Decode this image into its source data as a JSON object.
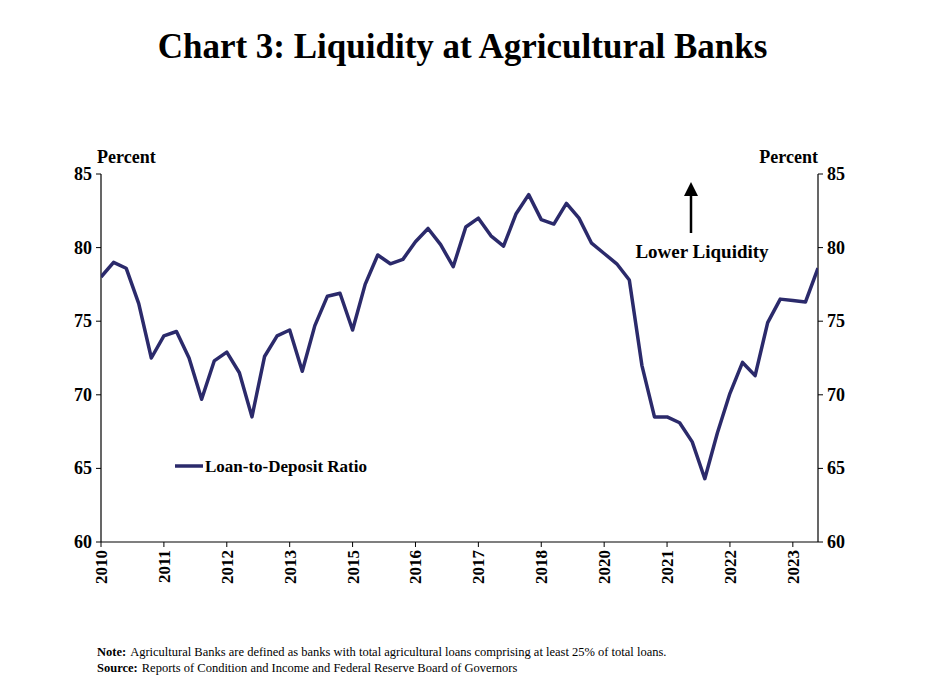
{
  "chart_data": {
    "type": "line",
    "title": "Chart 3: Liquidity at Agricultural Banks",
    "y_label": "Percent",
    "y2_label": "Percent",
    "annotation": "Lower Liquidity",
    "notes": [
      {
        "label": "Note:",
        "text": "Agricultural Banks are defined as banks with total agricultural loans comprising at least 25% of total loans."
      },
      {
        "label": "Source:",
        "text": "Reports of Condition and Income and Federal Reserve Board of Governors"
      }
    ],
    "categories": [
      "2010",
      null,
      null,
      null,
      null,
      "2011",
      null,
      null,
      null,
      null,
      "2012",
      null,
      null,
      null,
      null,
      "2013",
      null,
      null,
      null,
      null,
      "2015",
      null,
      null,
      null,
      null,
      "2016",
      null,
      null,
      null,
      null,
      "2017",
      null,
      null,
      null,
      null,
      "2018",
      null,
      null,
      null,
      null,
      "2020",
      null,
      null,
      null,
      null,
      "2021",
      null,
      null,
      null,
      null,
      "2022",
      null,
      null,
      null,
      null,
      "2023",
      null,
      null
    ],
    "series": [
      {
        "name": "Loan-to-Deposit Ratio",
        "color": "#2b2a6b",
        "values": [
          78.0,
          79.0,
          78.6,
          76.2,
          72.5,
          74.0,
          74.3,
          72.5,
          69.7,
          72.3,
          72.9,
          71.5,
          68.5,
          72.6,
          74.0,
          74.4,
          71.6,
          74.7,
          76.7,
          76.9,
          74.4,
          77.5,
          79.5,
          78.9,
          79.2,
          80.4,
          81.3,
          80.2,
          78.7,
          81.4,
          82.0,
          80.8,
          80.1,
          82.3,
          83.6,
          81.9,
          81.6,
          83.0,
          82.0,
          80.3,
          79.6,
          78.9,
          77.8,
          72.0,
          68.5,
          68.5,
          68.1,
          66.8,
          64.3,
          67.4,
          70.1,
          72.2,
          71.3,
          74.9,
          76.5,
          76.4,
          76.3,
          78.6
        ]
      }
    ],
    "ylim": [
      60,
      85
    ],
    "yticks": [
      60,
      65,
      70,
      75,
      80,
      85
    ],
    "y2lim": [
      60,
      85
    ],
    "y2ticks": [
      60,
      65,
      70,
      75,
      80,
      85
    ],
    "grid": false,
    "legend": "lower left"
  }
}
